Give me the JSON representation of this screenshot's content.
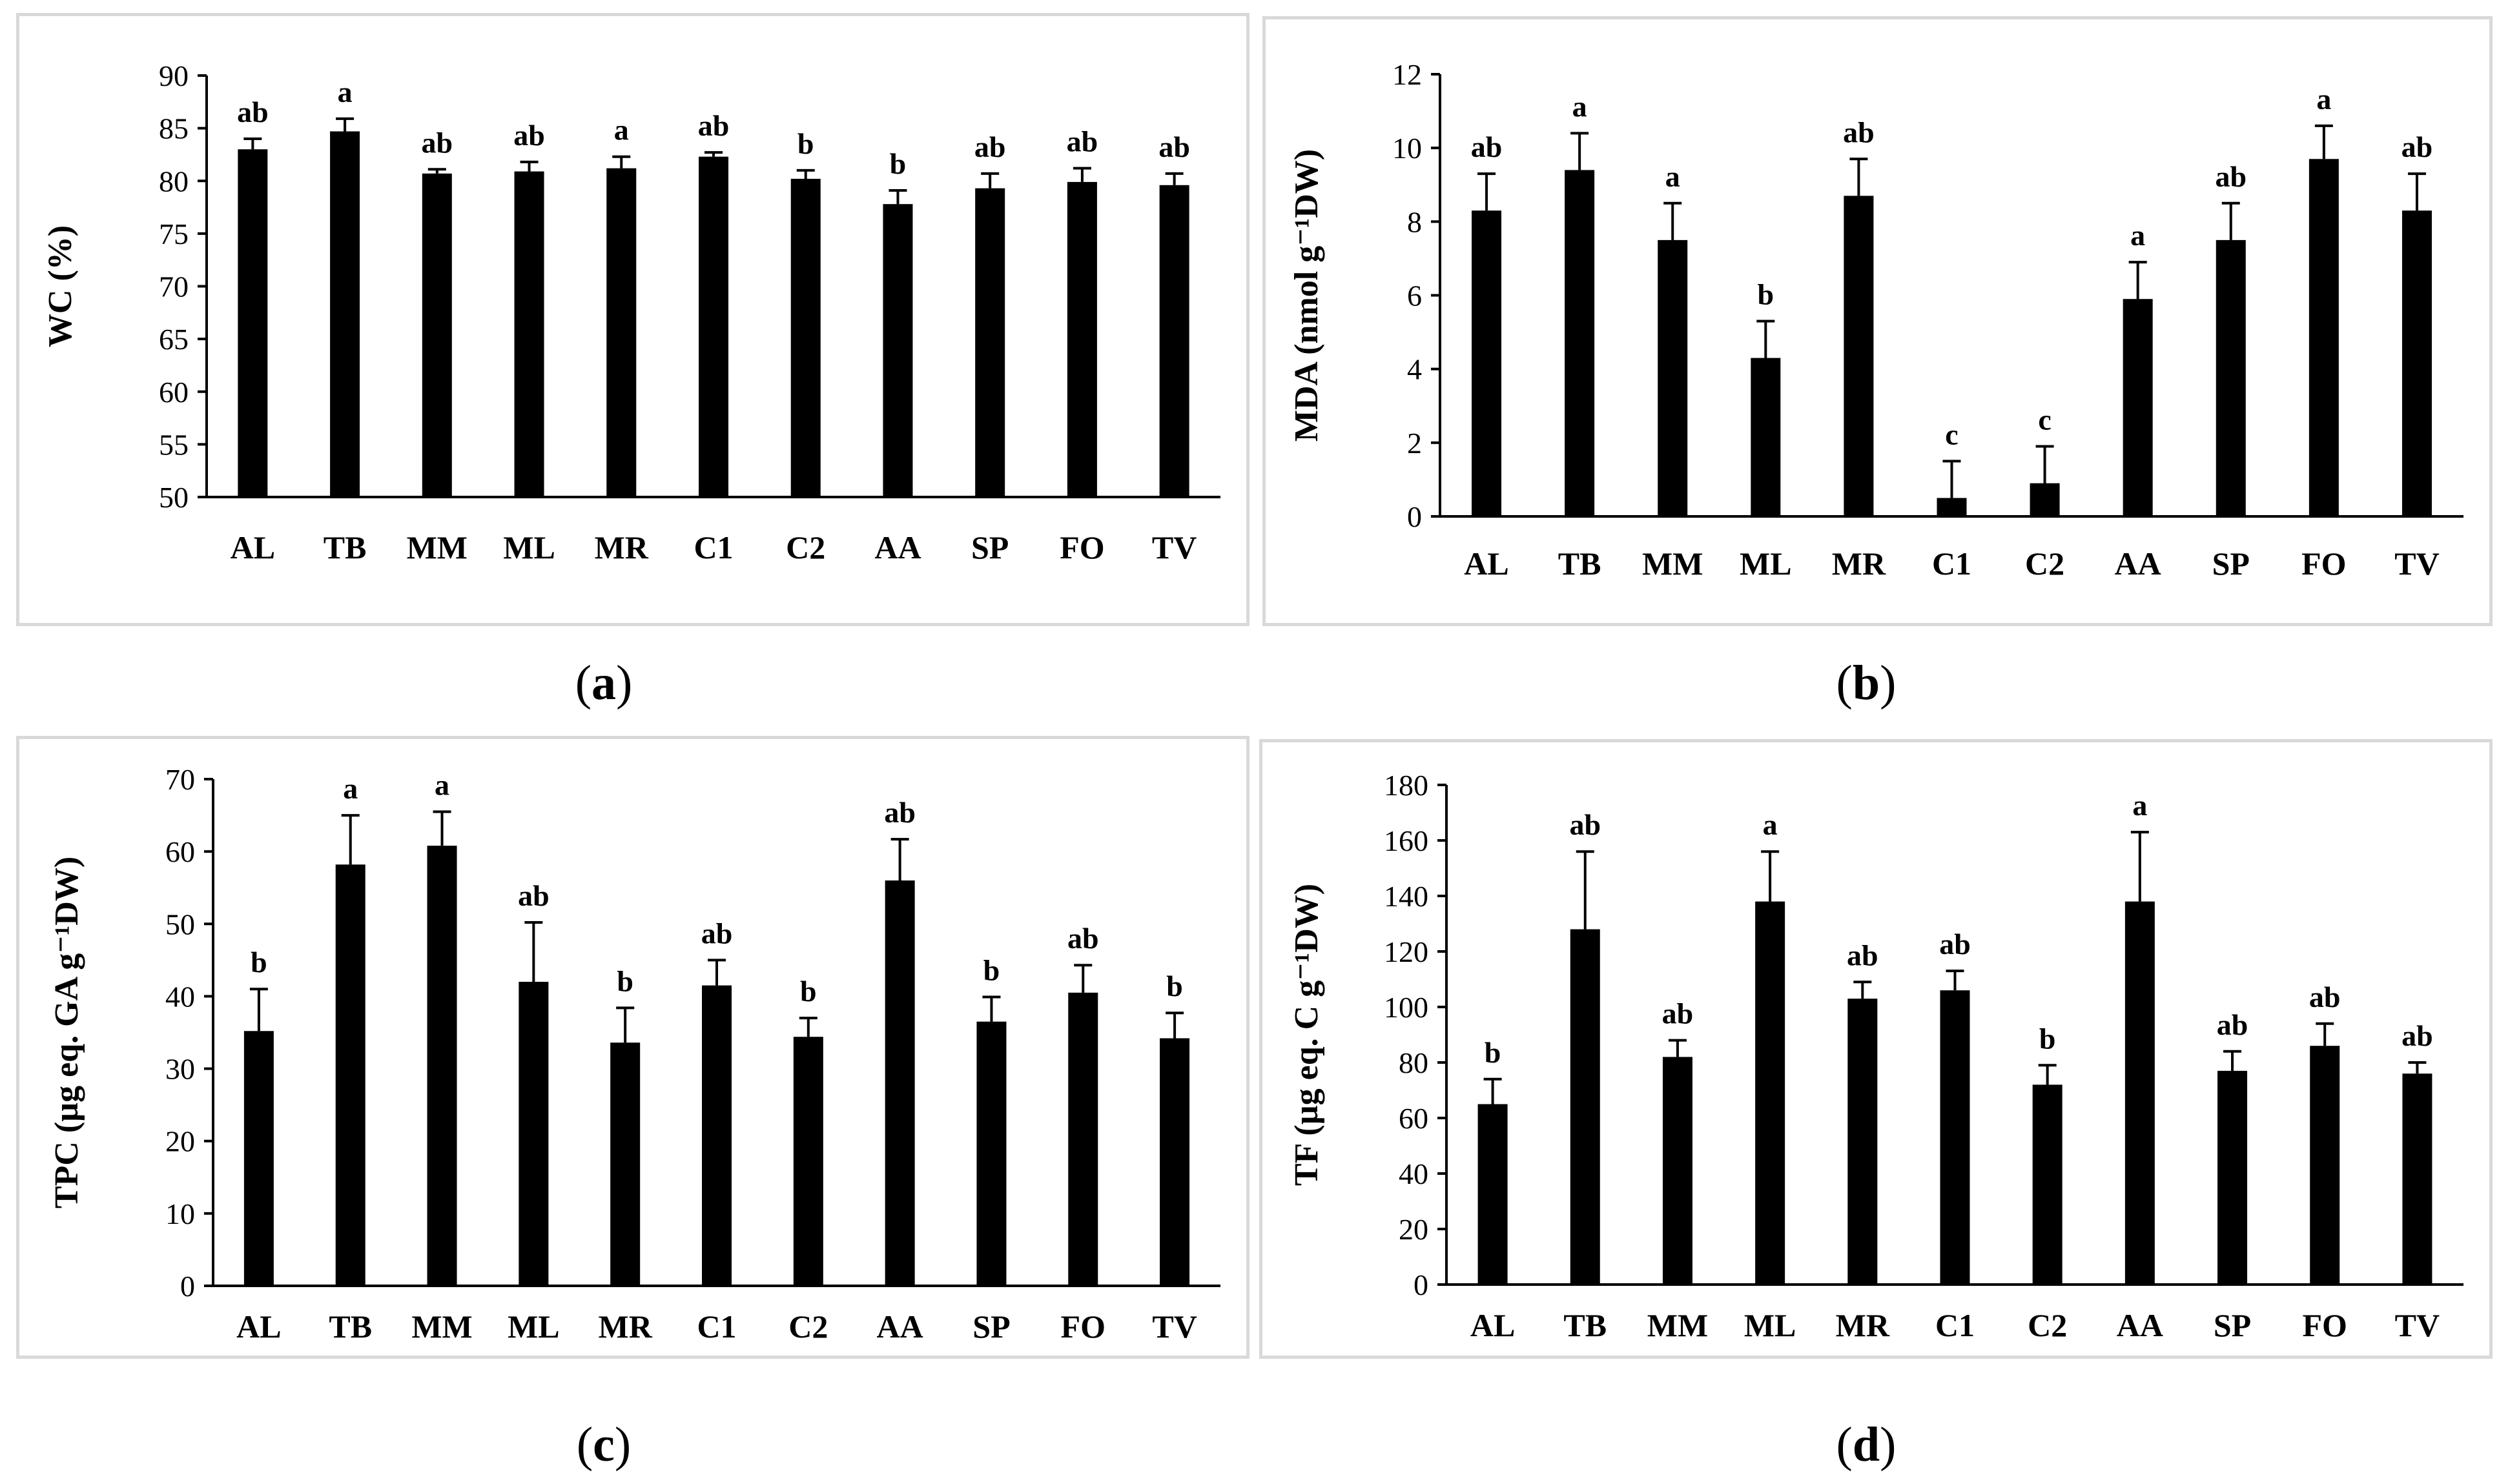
{
  "chart_data": [
    {
      "type": "bar",
      "panel_label": "a",
      "title": "",
      "xlabel": "",
      "ylabel": "WC (%)",
      "ylim": [
        50,
        90
      ],
      "yticks": [
        50,
        55,
        60,
        65,
        70,
        75,
        80,
        85,
        90
      ],
      "categories": [
        "AL",
        "TB",
        "MM",
        "ML",
        "MR",
        "C1",
        "C2",
        "AA",
        "SP",
        "FO",
        "TV"
      ],
      "values": [
        83.0,
        84.7,
        80.7,
        80.9,
        81.2,
        82.3,
        80.2,
        77.8,
        79.3,
        79.9,
        79.6
      ],
      "errors": [
        1.0,
        1.2,
        0.4,
        0.9,
        1.1,
        0.4,
        0.8,
        1.3,
        1.4,
        1.3,
        1.1
      ],
      "letters": [
        "ab",
        "a",
        "ab",
        "ab",
        "a",
        "ab",
        "b",
        "b",
        "ab",
        "ab",
        "ab"
      ],
      "bar_color": "#000000",
      "grid": false
    },
    {
      "type": "bar",
      "panel_label": "b",
      "title": "",
      "xlabel": "",
      "ylabel": "MDA (nmol g⁻¹DW)",
      "ylim": [
        0,
        12
      ],
      "yticks": [
        0,
        2,
        4,
        6,
        8,
        10,
        12
      ],
      "categories": [
        "AL",
        "TB",
        "MM",
        "ML",
        "MR",
        "C1",
        "C2",
        "AA",
        "SP",
        "FO",
        "TV"
      ],
      "values": [
        8.3,
        9.4,
        7.5,
        4.3,
        8.7,
        0.5,
        0.9,
        5.9,
        7.5,
        9.7,
        8.3
      ],
      "errors": [
        1.0,
        1.0,
        1.0,
        1.0,
        1.0,
        1.0,
        1.0,
        1.0,
        1.0,
        0.9,
        1.0
      ],
      "letters": [
        "ab",
        "a",
        "a",
        "b",
        "ab",
        "c",
        "c",
        "a",
        "ab",
        "a",
        "ab"
      ],
      "bar_color": "#000000",
      "grid": false
    },
    {
      "type": "bar",
      "panel_label": "c",
      "title": "",
      "xlabel": "",
      "ylabel": "TPC (µg eq. GA g⁻¹DW)",
      "ylim": [
        0,
        70
      ],
      "yticks": [
        0,
        10,
        20,
        30,
        40,
        50,
        60,
        70
      ],
      "categories": [
        "AL",
        "TB",
        "MM",
        "ML",
        "MR",
        "C1",
        "C2",
        "AA",
        "SP",
        "FO",
        "TV"
      ],
      "values": [
        35.2,
        58.2,
        60.8,
        42.0,
        33.6,
        41.5,
        34.4,
        56.0,
        36.5,
        40.5,
        34.2
      ],
      "errors": [
        5.8,
        6.8,
        4.7,
        8.2,
        4.8,
        3.5,
        2.6,
        5.7,
        3.4,
        3.8,
        3.5
      ],
      "letters": [
        "b",
        "a",
        "a",
        "ab",
        "b",
        "ab",
        "b",
        "ab",
        "b",
        "ab",
        "b"
      ],
      "bar_color": "#000000",
      "grid": false
    },
    {
      "type": "bar",
      "panel_label": "d",
      "title": "",
      "xlabel": "",
      "ylabel": "TF (µg eq. C g⁻¹DW)",
      "ylim": [
        0,
        180
      ],
      "yticks": [
        0,
        20,
        40,
        60,
        80,
        100,
        120,
        140,
        160,
        180
      ],
      "categories": [
        "AL",
        "TB",
        "MM",
        "ML",
        "MR",
        "C1",
        "C2",
        "AA",
        "SP",
        "FO",
        "TV"
      ],
      "values": [
        65,
        128,
        82,
        138,
        103,
        106,
        72,
        138,
        77,
        86,
        76
      ],
      "errors": [
        9,
        28,
        6,
        18,
        6,
        7,
        7,
        25,
        7,
        8,
        4
      ],
      "letters": [
        "b",
        "ab",
        "ab",
        "a",
        "ab",
        "ab",
        "b",
        "a",
        "ab",
        "ab",
        "ab"
      ],
      "bar_color": "#000000",
      "grid": false
    }
  ]
}
